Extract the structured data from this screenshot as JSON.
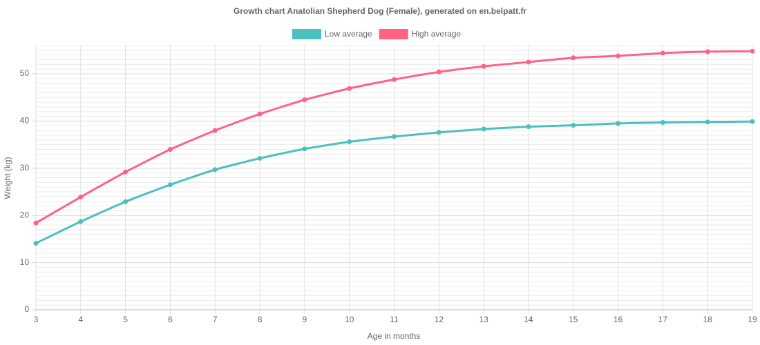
{
  "chart_data": {
    "type": "line",
    "title": "Growth chart Anatolian Shepherd Dog (Female), generated on en.belpatt.fr",
    "x_label": "Age in months",
    "y_label": "Weight (kg)",
    "x": [
      3,
      4,
      5,
      6,
      7,
      8,
      9,
      10,
      11,
      12,
      13,
      14,
      15,
      16,
      17,
      18,
      19
    ],
    "xlim": [
      3,
      19
    ],
    "xticks": [
      3,
      4,
      5,
      6,
      7,
      8,
      9,
      10,
      11,
      12,
      13,
      14,
      15,
      16,
      17,
      18,
      19
    ],
    "ylim": [
      0,
      56
    ],
    "yticks": [
      0,
      10,
      20,
      30,
      40,
      50
    ],
    "y_minor_ticks": [
      1,
      2,
      3,
      4,
      5,
      6,
      7,
      8,
      9,
      11,
      12,
      13,
      14,
      15,
      16,
      17,
      18,
      19,
      21,
      22,
      23,
      24,
      25,
      26,
      27,
      28,
      29,
      31,
      32,
      33,
      34,
      35,
      36,
      37,
      38,
      39,
      41,
      42,
      43,
      44,
      45,
      46,
      47,
      48,
      49,
      51,
      52,
      53,
      54,
      55,
      56
    ],
    "grid": true,
    "legend": "top",
    "series": [
      {
        "name": "Low average",
        "color": "#4bc0c0",
        "values": [
          14.1,
          18.7,
          22.9,
          26.5,
          29.7,
          32.1,
          34.1,
          35.6,
          36.7,
          37.6,
          38.3,
          38.8,
          39.1,
          39.5,
          39.7,
          39.8,
          39.9
        ]
      },
      {
        "name": "High average",
        "color": "#ff6384",
        "values": [
          18.4,
          23.9,
          29.2,
          34.0,
          38.0,
          41.5,
          44.5,
          46.9,
          48.8,
          50.4,
          51.6,
          52.5,
          53.4,
          53.8,
          54.4,
          54.7,
          54.8
        ]
      }
    ]
  }
}
